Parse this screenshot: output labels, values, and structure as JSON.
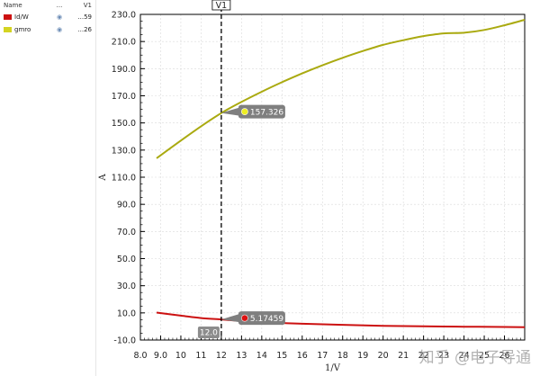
{
  "legend": {
    "headers": {
      "name": "Name",
      "vis": "...",
      "val": "V1"
    },
    "rows": [
      {
        "name": "Id/W",
        "value": "...59",
        "color": "#cc1111",
        "icon": "eye-icon"
      },
      {
        "name": "gmro",
        "value": "...26",
        "color": "#d4d422",
        "icon": "eye-icon"
      }
    ]
  },
  "watermark": "知乎 @电子导通",
  "chart_data": {
    "type": "line",
    "xlabel": "1/V",
    "ylabel": "A",
    "xlim": [
      8.0,
      27.0
    ],
    "ylim": [
      -10.0,
      230.0
    ],
    "x_ticks": [
      "8.0",
      "9.0",
      "10",
      "11",
      "12",
      "13",
      "14",
      "15",
      "16",
      "17",
      "18",
      "19",
      "20",
      "21",
      "22",
      "23",
      "24",
      "25",
      "26"
    ],
    "y_ticks": [
      "-10.0",
      "10.0",
      "30.0",
      "50.0",
      "70.0",
      "90.0",
      "110.0",
      "130.0",
      "150.0",
      "170.0",
      "190.0",
      "210.0",
      "230.0"
    ],
    "grid": true,
    "series": [
      {
        "name": "Id/W",
        "color": "#cc1111",
        "x": [
          8.8,
          10,
          11,
          12,
          13,
          14,
          16,
          18,
          20,
          22,
          24,
          26,
          27
        ],
        "y": [
          10.2,
          8.0,
          6.2,
          5.17,
          4.0,
          3.2,
          2.0,
          1.2,
          0.5,
          0.1,
          -0.2,
          -0.4,
          -0.5
        ]
      },
      {
        "name": "gmro",
        "color": "#aaaa10",
        "x": [
          8.8,
          10,
          11,
          12,
          13,
          14,
          15,
          16,
          17,
          18,
          19,
          20,
          21,
          22,
          23,
          24,
          25,
          26,
          27
        ],
        "y": [
          124,
          137,
          147.5,
          157.3,
          165.5,
          173,
          180,
          186.5,
          192.5,
          198,
          203,
          207.5,
          211,
          214,
          216,
          216.5,
          218.5,
          222,
          226
        ]
      }
    ],
    "cursor": {
      "label": "V1",
      "x": 12.0,
      "x_label": "12.0"
    },
    "markers": [
      {
        "series": "gmro",
        "x": 12.0,
        "y": 157.326,
        "label": "157.326",
        "color": "#eeee22"
      },
      {
        "series": "Id/W",
        "x": 12.0,
        "y": 5.17459,
        "label": "5.17459",
        "color": "#dd1111"
      }
    ]
  }
}
